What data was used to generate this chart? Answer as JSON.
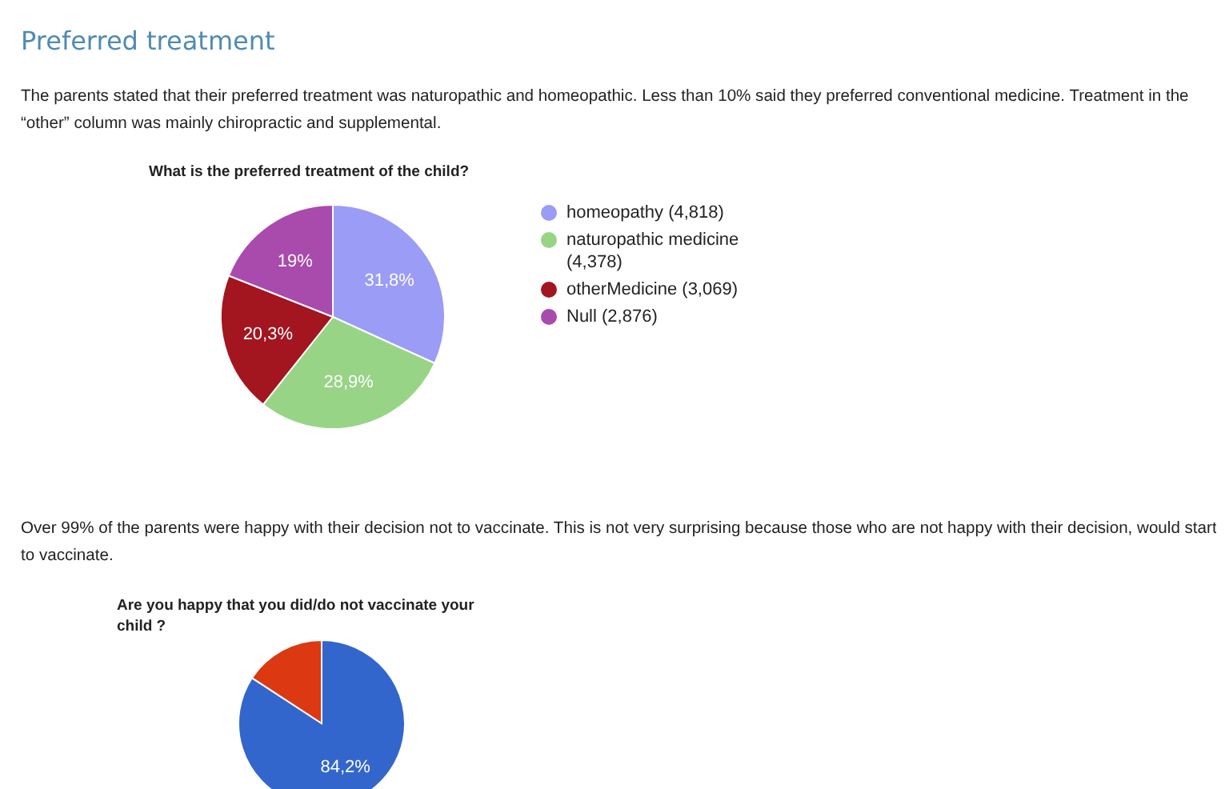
{
  "chart_data": [
    {
      "type": "pie",
      "title": "What is the preferred treatment of the child?",
      "annotations": [
        "Preferred treatment",
        "The parents stated that their preferred treatment was naturopathic and homeopathic. Less than 10% said they preferred conventional medicine. Treatment in the “other” column was mainly chiropractic and supplemental."
      ],
      "categories": [
        "homeopathy (4,818)",
        "naturopathic medicine (4,378)",
        "otherMedicine (3,069)",
        "Null (2,876)"
      ],
      "values": [
        31.8,
        28.9,
        20.3,
        19
      ],
      "colors": [
        "#9a9cf5",
        "#98d486",
        "#a3151f",
        "#a94aad"
      ],
      "value_labels": [
        "31,8%",
        "28,9%",
        "20,3%",
        "19%"
      ],
      "legend": "right"
    },
    {
      "type": "pie",
      "title": "Are you happy that you did/do not vaccinate your child ?",
      "annotations": [
        "Over 99% of the parents were happy with their decision not to vaccinate. This is not very surprising because those who are not happy with their decision, would start to vaccinate."
      ],
      "categories": [
        null,
        null
      ],
      "values": [
        84.2,
        15.8
      ],
      "colors": [
        "#3366cc",
        "#dc3912"
      ],
      "value_labels": [
        "84,2%",
        null
      ]
    }
  ]
}
